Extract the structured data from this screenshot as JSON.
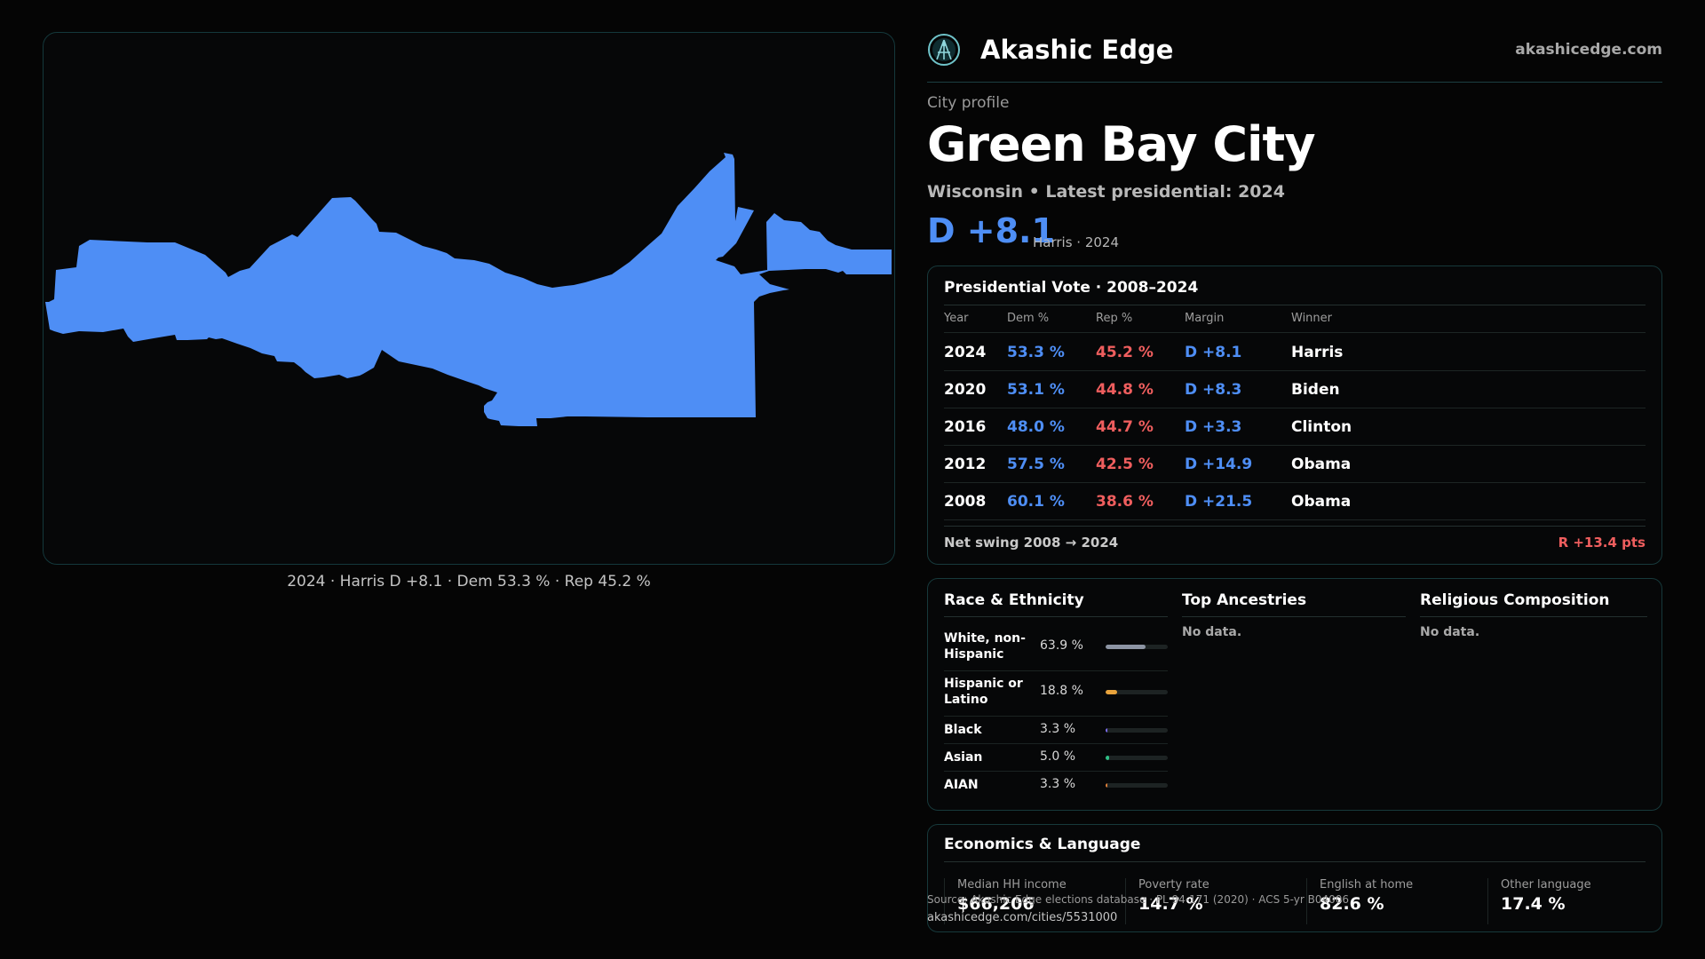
{
  "brand": {
    "name": "Akashic Edge",
    "url": "akashicedge.com"
  },
  "profile": {
    "label": "City profile",
    "city": "Green Bay City",
    "subtitle": "Wisconsin • Latest presidential: 2024",
    "margin": "D +8.1",
    "margin_note": "Harris · 2024"
  },
  "map": {
    "caption": "2024 · Harris D +8.1 · Dem 53.3 % · Rep 45.2 %",
    "fill_color": "#4e8ef5"
  },
  "presidential": {
    "title": "Presidential Vote · 2008–2024",
    "columns": {
      "year": "Year",
      "dem": "Dem %",
      "rep": "Rep %",
      "margin": "Margin",
      "winner": "Winner"
    },
    "rows": [
      {
        "year": "2024",
        "dem": "53.3 %",
        "rep": "45.2 %",
        "margin": "D +8.1",
        "winner": "Harris"
      },
      {
        "year": "2020",
        "dem": "53.1 %",
        "rep": "44.8 %",
        "margin": "D +8.3",
        "winner": "Biden"
      },
      {
        "year": "2016",
        "dem": "48.0 %",
        "rep": "44.7 %",
        "margin": "D +3.3",
        "winner": "Clinton"
      },
      {
        "year": "2012",
        "dem": "57.5 %",
        "rep": "42.5 %",
        "margin": "D +14.9",
        "winner": "Obama"
      },
      {
        "year": "2008",
        "dem": "60.1 %",
        "rep": "38.6 %",
        "margin": "D +21.5",
        "winner": "Obama"
      }
    ],
    "swing_label": "Net swing 2008 → 2024",
    "swing_value": "R +13.4 pts"
  },
  "race": {
    "title": "Race & Ethnicity",
    "items": [
      {
        "label": "White, non-Hispanic",
        "pct": "63.9 %",
        "share": 0.639,
        "color": "#8c94a3"
      },
      {
        "label": "Hispanic or Latino",
        "pct": "18.8 %",
        "share": 0.188,
        "color": "#e8a33c"
      },
      {
        "label": "Black",
        "pct": "3.3 %",
        "share": 0.033,
        "color": "#7c6cf0"
      },
      {
        "label": "Asian",
        "pct": "5.0 %",
        "share": 0.05,
        "color": "#2fbf86"
      },
      {
        "label": "AIAN",
        "pct": "3.3 %",
        "share": 0.033,
        "color": "#e0803a"
      }
    ]
  },
  "ancestries": {
    "title": "Top Ancestries",
    "empty": "No data."
  },
  "religion": {
    "title": "Religious Composition",
    "empty": "No data."
  },
  "economics": {
    "title": "Economics & Language",
    "stats": [
      {
        "label": "Median HH income",
        "value": "$66,206"
      },
      {
        "label": "Poverty rate",
        "value": "14.7 %"
      },
      {
        "label": "English at home",
        "value": "82.6 %"
      },
      {
        "label": "Other language",
        "value": "17.4 %"
      }
    ]
  },
  "footer": {
    "source": "Source: Akashic Edge elections database · PL 94-171 (2020) · ACS 5-yr B04006",
    "url": "akashicedge.com/cities/5531000"
  }
}
